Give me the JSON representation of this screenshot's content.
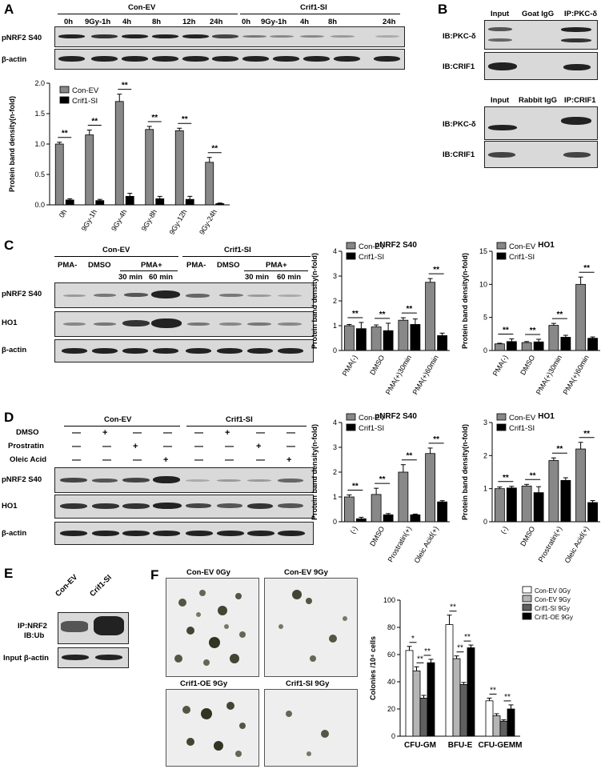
{
  "panels": {
    "A": {
      "letter": "A",
      "group1": "Con-EV",
      "group2": "Crif1-SI",
      "lanes": [
        "0h",
        "9Gy-1h",
        "4h",
        "8h",
        "12h",
        "24h",
        "0h",
        "9Gy-1h",
        "4h",
        "8h",
        "24h"
      ],
      "row1": "pNRF2 S40",
      "row2": "β-actin"
    },
    "B": {
      "letter": "B",
      "top_headers": [
        "Input",
        "Goat IgG",
        "IP:PKC-δ"
      ],
      "bottom_headers": [
        "Input",
        "Rabbit IgG",
        "IP:CRIF1"
      ],
      "rows": [
        "IB:PKC-δ",
        "IB:CRIF1",
        "IB:PKC-δ",
        "IB:CRIF1"
      ]
    },
    "C": {
      "letter": "C",
      "group1": "Con-EV",
      "group2": "Crif1-SI",
      "cond": [
        "PMA-",
        "DMSO",
        "PMA+",
        "PMA-",
        "DMSO",
        "PMA+"
      ],
      "times": [
        "30 min",
        "60 min",
        "30 min",
        "60 min"
      ],
      "rows": [
        "pNRF2 S40",
        "HO1",
        "β-actin"
      ]
    },
    "D": {
      "letter": "D",
      "group1": "Con-EV",
      "group2": "Crif1-SI",
      "treat_labels": [
        "DMSO",
        "Prostratin",
        "Oleic Acid"
      ],
      "treat_marks": [
        [
          "—",
          "+",
          "—",
          "—",
          "—",
          "+",
          "—",
          "—"
        ],
        [
          "—",
          "—",
          "+",
          "—",
          "—",
          "—",
          "+",
          "—"
        ],
        [
          "—",
          "—",
          "—",
          "+",
          "—",
          "—",
          "—",
          "+"
        ]
      ],
      "rows": [
        "pNRF2 S40",
        "HO1",
        "β-actin"
      ]
    },
    "E": {
      "letter": "E",
      "lanes": [
        "Con-EV",
        "Crif1-SI"
      ],
      "row1_line1": "IP:NRF2",
      "row1_line2": "IB:Ub",
      "row2": "Input β-actin"
    },
    "F": {
      "letter": "F",
      "photo_labels": [
        "Con-EV 0Gy",
        "Con-EV 9Gy",
        "Crif1-OE 9Gy",
        "Crif1-SI 9Gy"
      ]
    }
  },
  "chart_data": [
    {
      "id": "A-bar",
      "type": "bar",
      "categories": [
        "0h",
        "9Gy-1h",
        "9Gy-4h",
        "9Gy-8h",
        "9Gy-12h",
        "9Gy-24h"
      ],
      "series": [
        {
          "name": "Con-EV",
          "values": [
            1.0,
            1.15,
            1.7,
            1.24,
            1.22,
            0.7
          ],
          "errors": [
            0.03,
            0.08,
            0.12,
            0.05,
            0.04,
            0.08
          ],
          "color": "#888888"
        },
        {
          "name": "Crif1-SI",
          "values": [
            0.08,
            0.07,
            0.14,
            0.1,
            0.09,
            0.02
          ],
          "errors": [
            0.02,
            0.02,
            0.05,
            0.04,
            0.05,
            0.01
          ],
          "color": "#000000"
        }
      ],
      "ylabel": "Protein band density(n-fold)",
      "ylim": [
        0,
        2.0
      ],
      "yticks": [
        "0.0",
        "0.5",
        "1.0",
        "1.5",
        "2.0"
      ],
      "sig": "**",
      "legend": "top-left"
    },
    {
      "id": "C-pnrf2",
      "type": "bar",
      "title": "pNRF2 S40",
      "categories": [
        "PMA(-)",
        "DMSO",
        "PMA(+)30min",
        "PMA(+)60min"
      ],
      "series": [
        {
          "name": "Con-EV",
          "values": [
            1.0,
            0.95,
            1.22,
            2.75
          ],
          "errors": [
            0.05,
            0.08,
            0.1,
            0.15
          ],
          "color": "#888888"
        },
        {
          "name": "Crif1-SI",
          "values": [
            0.88,
            0.8,
            1.05,
            0.6
          ],
          "errors": [
            0.25,
            0.3,
            0.22,
            0.1
          ],
          "color": "#000000"
        }
      ],
      "ylabel": "Protein band density(n-fold)",
      "ylim": [
        0,
        4
      ],
      "yticks": [
        "0",
        "1",
        "2",
        "3",
        "4"
      ],
      "sig": "**",
      "legend": "top-left"
    },
    {
      "id": "C-ho1",
      "type": "bar",
      "title": "HO1",
      "categories": [
        "PMA(-)",
        "DMSO",
        "PMA(+)30min",
        "PMA(+)60min"
      ],
      "series": [
        {
          "name": "Con-EV",
          "values": [
            1.0,
            1.2,
            3.8,
            10.0
          ],
          "errors": [
            0.1,
            0.15,
            0.3,
            1.1
          ],
          "color": "#888888"
        },
        {
          "name": "Crif1-SI",
          "values": [
            1.35,
            1.3,
            2.0,
            1.85
          ],
          "errors": [
            0.4,
            0.4,
            0.3,
            0.2
          ],
          "color": "#000000"
        }
      ],
      "ylabel": "Protein band density(n-fold)",
      "ylim": [
        0,
        15
      ],
      "yticks": [
        "0",
        "5",
        "10",
        "15"
      ],
      "sig": "**",
      "legend": "top-left"
    },
    {
      "id": "D-pnrf2",
      "type": "bar",
      "title": "pNRF2 S40",
      "categories": [
        "(-)",
        "DMSO",
        "Prostratin(+)",
        "Oleic Acid(+)"
      ],
      "series": [
        {
          "name": "Con-EV",
          "values": [
            1.0,
            1.1,
            2.0,
            2.75
          ],
          "errors": [
            0.08,
            0.25,
            0.3,
            0.22
          ],
          "color": "#888888"
        },
        {
          "name": "Crif1-SI",
          "values": [
            0.12,
            0.28,
            0.28,
            0.8
          ],
          "errors": [
            0.06,
            0.05,
            0.03,
            0.05
          ],
          "color": "#000000"
        }
      ],
      "ylabel": "Protein band density(n-fold)",
      "ylim": [
        0,
        4
      ],
      "yticks": [
        "0",
        "1",
        "2",
        "3",
        "4"
      ],
      "sig": "**",
      "legend": "top-left"
    },
    {
      "id": "D-ho1",
      "type": "bar",
      "title": "HO1",
      "categories": [
        "(-)",
        "DMSO",
        "Prostratin(+)",
        "Oleic Acid(+)"
      ],
      "series": [
        {
          "name": "Con-EV",
          "values": [
            1.0,
            1.08,
            1.85,
            2.2
          ],
          "errors": [
            0.05,
            0.05,
            0.08,
            0.2
          ],
          "color": "#888888"
        },
        {
          "name": "Crif1-SI",
          "values": [
            1.02,
            0.88,
            1.25,
            0.58
          ],
          "errors": [
            0.05,
            0.18,
            0.08,
            0.06
          ],
          "color": "#000000"
        }
      ],
      "ylabel": "Protein band density(n-fold)",
      "ylim": [
        0,
        3
      ],
      "yticks": [
        "0",
        "1",
        "2",
        "3"
      ],
      "sig": "**",
      "legend": "top-left"
    },
    {
      "id": "F-colonies",
      "type": "bar",
      "categories": [
        "CFU-GM",
        "BFU-E",
        "CFU-GEMM"
      ],
      "series": [
        {
          "name": "Con-EV 0Gy",
          "values": [
            63,
            82,
            26
          ],
          "errors": [
            3,
            7,
            2
          ],
          "color": "#ffffff"
        },
        {
          "name": "Con-EV 9Gy",
          "values": [
            48,
            57,
            15
          ],
          "errors": [
            3,
            2,
            1.5
          ],
          "color": "#b5b5b5"
        },
        {
          "name": "Crif1-SI 9Gy",
          "values": [
            28,
            38,
            11
          ],
          "errors": [
            2,
            1.5,
            1
          ],
          "color": "#5f5f5f"
        },
        {
          "name": "Crif1-OE 9Gy",
          "values": [
            54,
            65,
            20
          ],
          "errors": [
            2.5,
            2,
            3
          ],
          "color": "#000000"
        }
      ],
      "ylabel": "Colonies /10⁴ cells",
      "ylim": [
        0,
        100
      ],
      "yticks": [
        "0",
        "20",
        "40",
        "60",
        "80",
        "100"
      ],
      "sig_labels": [
        "*",
        "**",
        "**",
        "**",
        "**",
        "**",
        "**",
        "**"
      ],
      "legend": "top-right"
    }
  ]
}
